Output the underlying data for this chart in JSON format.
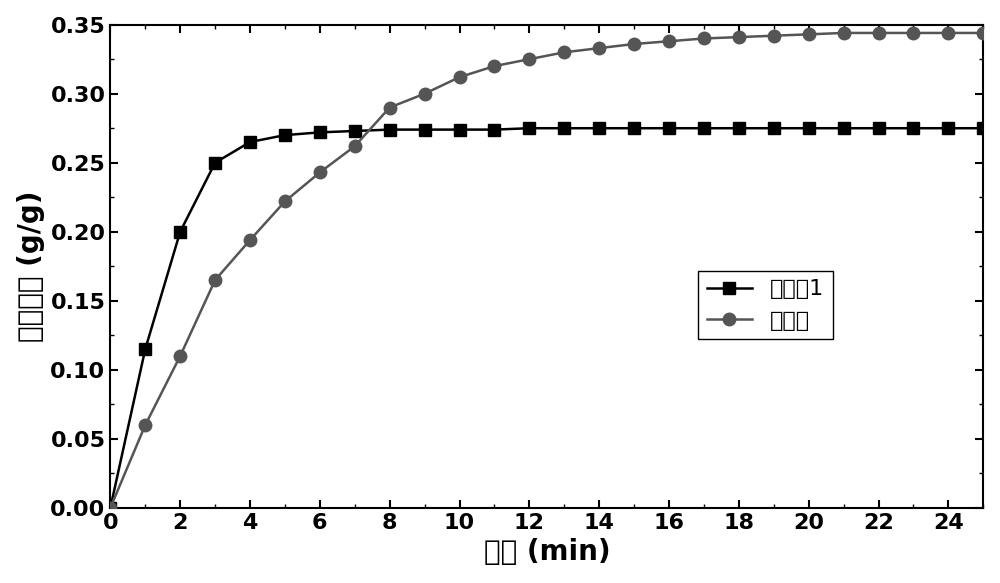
{
  "series1_label": "实施例1",
  "series2_label": "比较例",
  "series1_x": [
    0,
    1,
    2,
    3,
    4,
    5,
    6,
    7,
    8,
    9,
    10,
    11,
    12,
    13,
    14,
    15,
    16,
    17,
    18,
    19,
    20,
    21,
    22,
    23,
    24,
    25
  ],
  "series1_y": [
    0.0,
    0.115,
    0.2,
    0.25,
    0.265,
    0.27,
    0.272,
    0.273,
    0.274,
    0.274,
    0.274,
    0.274,
    0.275,
    0.275,
    0.275,
    0.275,
    0.275,
    0.275,
    0.275,
    0.275,
    0.275,
    0.275,
    0.275,
    0.275,
    0.275,
    0.275
  ],
  "series2_x": [
    0,
    1,
    2,
    3,
    4,
    5,
    6,
    7,
    8,
    9,
    10,
    11,
    12,
    13,
    14,
    15,
    16,
    17,
    18,
    19,
    20,
    21,
    22,
    23,
    24,
    25
  ],
  "series2_y": [
    0.0,
    0.06,
    0.11,
    0.165,
    0.194,
    0.222,
    0.243,
    0.262,
    0.29,
    0.3,
    0.312,
    0.32,
    0.325,
    0.33,
    0.333,
    0.336,
    0.338,
    0.34,
    0.341,
    0.342,
    0.343,
    0.344,
    0.344,
    0.344,
    0.344,
    0.344
  ],
  "series1_marker": "s",
  "series2_marker": "o",
  "series1_color": "#000000",
  "series2_color": "#555555",
  "xlabel": "时间 (min)",
  "ylabel": "水吸附量 (g/g)",
  "xlim": [
    0,
    25
  ],
  "ylim": [
    0.0,
    0.35
  ],
  "xticks": [
    0,
    2,
    4,
    6,
    8,
    10,
    12,
    14,
    16,
    18,
    20,
    22,
    24
  ],
  "yticks": [
    0.0,
    0.05,
    0.1,
    0.15,
    0.2,
    0.25,
    0.3,
    0.35
  ],
  "xlabel_fontsize": 20,
  "ylabel_fontsize": 20,
  "tick_fontsize": 16,
  "legend_fontsize": 16,
  "marker_size": 9,
  "line_width": 1.8,
  "background_color": "#ffffff"
}
